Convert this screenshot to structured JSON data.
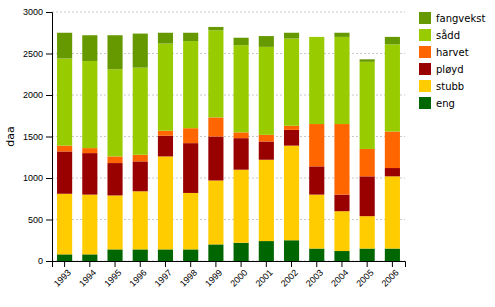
{
  "chart_data": {
    "type": "bar",
    "stacked": true,
    "categories": [
      "1993",
      "1994",
      "1995",
      "1996",
      "1997",
      "1998",
      "1999",
      "2000",
      "2001",
      "2002",
      "2003",
      "2004",
      "2005",
      "2006"
    ],
    "series": [
      {
        "name": "eng",
        "color": "#006600",
        "values": [
          80,
          80,
          140,
          140,
          140,
          140,
          200,
          220,
          240,
          250,
          150,
          120,
          150,
          150
        ]
      },
      {
        "name": "stubb",
        "color": "#ffcc00",
        "values": [
          730,
          720,
          650,
          700,
          1120,
          680,
          770,
          880,
          980,
          1140,
          650,
          480,
          390,
          870
        ]
      },
      {
        "name": "pløyd",
        "color": "#990000",
        "values": [
          510,
          500,
          390,
          360,
          250,
          600,
          530,
          380,
          220,
          190,
          340,
          200,
          480,
          100
        ]
      },
      {
        "name": "harvet",
        "color": "#ff6600",
        "values": [
          70,
          60,
          80,
          80,
          60,
          180,
          230,
          70,
          80,
          50,
          510,
          850,
          330,
          440
        ]
      },
      {
        "name": "sådd",
        "color": "#99cc00",
        "values": [
          1050,
          1050,
          1050,
          1050,
          1050,
          1050,
          1050,
          1050,
          1060,
          1050,
          1050,
          1050,
          1050,
          1050
        ]
      },
      {
        "name": "fangvekst",
        "color": "#669900",
        "values": [
          310,
          310,
          410,
          410,
          130,
          100,
          40,
          90,
          130,
          70,
          0,
          50,
          30,
          90
        ]
      }
    ],
    "ylabel": "daa",
    "ylim": [
      0,
      3000
    ],
    "yticks": [
      0,
      500,
      1000,
      1500,
      2000,
      2500,
      3000
    ],
    "grid": true,
    "legend": "upper right"
  }
}
